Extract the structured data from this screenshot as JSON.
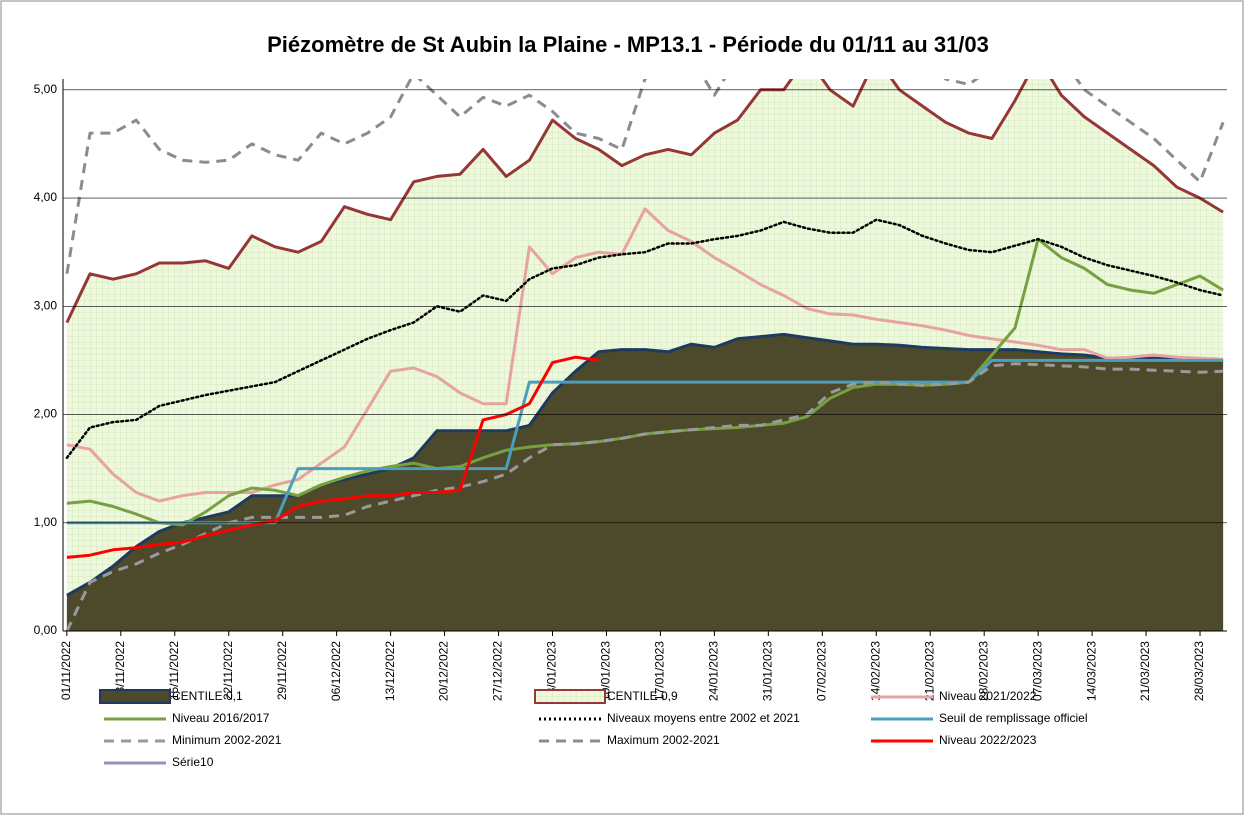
{
  "chart_data": {
    "type": "line",
    "title": "Piézomètre de St Aubin la Plaine - MP13.1 - Période du 01/11 au 31/03",
    "x": [
      "01/11/2022",
      "04/11/2022",
      "07/11/2022",
      "10/11/2022",
      "13/11/2022",
      "16/11/2022",
      "19/11/2022",
      "22/11/2022",
      "25/11/2022",
      "28/11/2022",
      "01/12/2022",
      "04/12/2022",
      "07/12/2022",
      "10/12/2022",
      "13/12/2022",
      "16/12/2022",
      "19/12/2022",
      "22/12/2022",
      "25/12/2022",
      "28/12/2022",
      "31/12/2022",
      "03/01/2023",
      "06/01/2023",
      "09/01/2023",
      "12/01/2023",
      "15/01/2023",
      "18/01/2023",
      "21/01/2023",
      "24/01/2023",
      "27/01/2023",
      "30/01/2023",
      "02/02/2023",
      "05/02/2023",
      "08/02/2023",
      "11/02/2023",
      "14/02/2023",
      "17/02/2023",
      "20/02/2023",
      "23/02/2023",
      "26/02/2023",
      "01/03/2023",
      "04/03/2023",
      "07/03/2023",
      "10/03/2023",
      "13/03/2023",
      "16/03/2023",
      "19/03/2023",
      "22/03/2023",
      "25/03/2023",
      "28/03/2023",
      "31/03/2023"
    ],
    "xlim": [
      "01/11/2022",
      "31/03/2023"
    ],
    "xticks": [
      "01/11/2022",
      "08/11/2022",
      "15/11/2022",
      "22/11/2022",
      "29/11/2022",
      "06/12/2022",
      "13/12/2022",
      "20/12/2022",
      "27/12/2022",
      "03/01/2023",
      "10/01/2023",
      "17/01/2023",
      "24/01/2023",
      "31/01/2023",
      "07/02/2023",
      "14/02/2023",
      "21/02/2023",
      "28/02/2023",
      "07/03/2023",
      "14/03/2023",
      "21/03/2023",
      "28/03/2023"
    ],
    "ylim": [
      0,
      5.1
    ],
    "yticks": [
      {
        "value": 0,
        "label": "0,00"
      },
      {
        "value": 1,
        "label": "1,00"
      },
      {
        "value": 2,
        "label": "2,00"
      },
      {
        "value": 3,
        "label": "3,00"
      },
      {
        "value": 4,
        "label": "4,00"
      },
      {
        "value": 5,
        "label": "5,00"
      }
    ],
    "grid": true,
    "series": [
      {
        "name": "CENTILE 0,1",
        "style": "area",
        "color": "#1f3a5f",
        "fill": "#4d4a2b",
        "values": [
          0.33,
          0.45,
          0.6,
          0.78,
          0.92,
          1.0,
          1.05,
          1.1,
          1.25,
          1.25,
          1.25,
          1.35,
          1.4,
          1.45,
          1.5,
          1.6,
          1.85,
          1.85,
          1.85,
          1.85,
          1.9,
          2.2,
          2.4,
          2.58,
          2.6,
          2.6,
          2.58,
          2.65,
          2.62,
          2.7,
          2.72,
          2.74,
          2.71,
          2.68,
          2.65,
          2.65,
          2.64,
          2.62,
          2.61,
          2.6,
          2.6,
          2.6,
          2.58,
          2.56,
          2.55,
          2.52,
          2.52,
          2.52,
          2.51,
          2.5,
          2.5
        ]
      },
      {
        "name": "CENTILE 0,9",
        "style": "area",
        "color": "#953735",
        "fill": "#eef7e0",
        "values": [
          2.85,
          3.3,
          3.25,
          3.3,
          3.4,
          3.4,
          3.42,
          3.35,
          3.65,
          3.55,
          3.5,
          3.6,
          3.92,
          3.85,
          3.8,
          4.15,
          4.2,
          4.22,
          4.45,
          4.2,
          4.35,
          4.72,
          4.55,
          4.45,
          4.3,
          4.4,
          4.45,
          4.4,
          4.6,
          4.72,
          5.0,
          5.0,
          5.3,
          5.0,
          4.85,
          5.3,
          5.0,
          4.85,
          4.7,
          4.6,
          4.55,
          4.9,
          5.3,
          4.95,
          4.75,
          4.6,
          4.45,
          4.3,
          4.1,
          4.0,
          3.87
        ]
      },
      {
        "name": "Niveau 2021/2022",
        "style": "solid",
        "color": "#e6a3a0",
        "values": [
          1.72,
          1.68,
          1.45,
          1.28,
          1.2,
          1.25,
          1.28,
          1.28,
          1.28,
          1.35,
          1.4,
          1.55,
          1.7,
          2.05,
          2.4,
          2.43,
          2.35,
          2.2,
          2.1,
          2.1,
          3.55,
          3.3,
          3.45,
          3.5,
          3.48,
          3.9,
          3.7,
          3.6,
          3.45,
          3.33,
          3.2,
          3.1,
          2.98,
          2.93,
          2.92,
          2.88,
          2.85,
          2.82,
          2.78,
          2.73,
          2.7,
          2.67,
          2.64,
          2.6,
          2.6,
          2.52,
          2.53,
          2.55,
          2.53,
          2.52,
          2.51
        ]
      },
      {
        "name": "Niveau 2016/2017",
        "style": "solid",
        "color": "#77a040",
        "values": [
          1.18,
          1.2,
          1.15,
          1.08,
          1.0,
          0.98,
          1.1,
          1.25,
          1.32,
          1.3,
          1.25,
          1.35,
          1.42,
          1.48,
          1.52,
          1.55,
          1.5,
          1.52,
          1.6,
          1.67,
          1.7,
          1.72,
          1.73,
          1.75,
          1.78,
          1.82,
          1.84,
          1.86,
          1.87,
          1.88,
          1.9,
          1.92,
          1.98,
          2.15,
          2.25,
          2.28,
          2.28,
          2.27,
          2.28,
          2.3,
          2.55,
          2.8,
          3.62,
          3.45,
          3.35,
          3.2,
          3.15,
          3.12,
          3.2,
          3.28,
          3.15
        ]
      },
      {
        "name": "Niveaux moyens entre 2002 et 2021",
        "style": "dotted",
        "color": "#000000",
        "values": [
          1.6,
          1.88,
          1.93,
          1.95,
          2.08,
          2.13,
          2.18,
          2.22,
          2.26,
          2.3,
          2.4,
          2.5,
          2.6,
          2.7,
          2.78,
          2.85,
          3.0,
          2.95,
          3.1,
          3.05,
          3.25,
          3.35,
          3.38,
          3.45,
          3.48,
          3.5,
          3.58,
          3.58,
          3.62,
          3.65,
          3.7,
          3.78,
          3.72,
          3.68,
          3.68,
          3.8,
          3.75,
          3.65,
          3.58,
          3.52,
          3.5,
          3.56,
          3.62,
          3.55,
          3.45,
          3.38,
          3.33,
          3.28,
          3.22,
          3.15,
          3.1
        ]
      },
      {
        "name": "Seuil de remplissage officiel",
        "style": "solid",
        "color": "#4a9fbf",
        "values": [
          1.0,
          1.0,
          1.0,
          1.0,
          1.0,
          1.0,
          1.0,
          1.0,
          1.0,
          1.0,
          1.5,
          1.5,
          1.5,
          1.5,
          1.5,
          1.5,
          1.5,
          1.5,
          1.5,
          1.5,
          2.3,
          2.3,
          2.3,
          2.3,
          2.3,
          2.3,
          2.3,
          2.3,
          2.3,
          2.3,
          2.3,
          2.3,
          2.3,
          2.3,
          2.3,
          2.3,
          2.3,
          2.3,
          2.3,
          2.3,
          2.5,
          2.5,
          2.5,
          2.5,
          2.5,
          2.5,
          2.5,
          2.5,
          2.5,
          2.5,
          2.5
        ]
      },
      {
        "name": "Minimum 2002-2021",
        "style": "dashed",
        "color": "#9a9a9a",
        "values": [
          0.0,
          0.45,
          0.55,
          0.62,
          0.72,
          0.8,
          0.9,
          1.0,
          1.05,
          1.05,
          1.05,
          1.05,
          1.07,
          1.15,
          1.2,
          1.25,
          1.3,
          1.33,
          1.38,
          1.45,
          1.6,
          1.72,
          1.73,
          1.75,
          1.78,
          1.82,
          1.84,
          1.86,
          1.88,
          1.9,
          1.9,
          1.95,
          2.0,
          2.2,
          2.28,
          2.3,
          2.28,
          2.27,
          2.28,
          2.3,
          2.45,
          2.47,
          2.46,
          2.45,
          2.44,
          2.42,
          2.42,
          2.41,
          2.4,
          2.39,
          2.4
        ]
      },
      {
        "name": "Maximum 2002-2021",
        "style": "dashed",
        "color": "#8c8c8c",
        "values": [
          3.3,
          4.6,
          4.6,
          4.72,
          4.45,
          4.35,
          4.33,
          4.35,
          4.5,
          4.4,
          4.35,
          4.6,
          4.5,
          4.6,
          4.75,
          5.15,
          4.95,
          4.75,
          4.93,
          4.85,
          4.95,
          4.8,
          4.6,
          4.55,
          4.45,
          5.1,
          5.3,
          5.3,
          4.95,
          5.3,
          5.3,
          5.3,
          5.3,
          5.3,
          5.3,
          5.3,
          5.3,
          5.3,
          5.1,
          5.05,
          5.2,
          5.3,
          5.3,
          5.3,
          5.0,
          4.85,
          4.7,
          4.55,
          4.35,
          4.15,
          4.7
        ]
      },
      {
        "name": "Niveau 2022/2023",
        "style": "solid",
        "color": "#ff0000",
        "values": [
          0.68,
          0.7,
          0.75,
          0.77,
          0.8,
          0.82,
          0.88,
          0.93,
          0.98,
          1.02,
          1.15,
          1.2,
          1.22,
          1.25,
          1.25,
          1.28,
          1.28,
          1.3,
          1.95,
          2.0,
          2.1,
          2.48,
          2.53,
          2.5,
          null,
          null,
          null,
          null,
          null,
          null,
          null,
          null,
          null,
          null,
          null,
          null,
          null,
          null,
          null,
          null,
          null,
          null,
          null,
          null,
          null,
          null,
          null,
          null,
          null,
          null,
          null
        ]
      },
      {
        "name": "Série10",
        "style": "solid",
        "color": "#9c8fb8",
        "values": [
          null,
          null,
          null,
          null,
          null,
          null,
          null,
          null,
          null,
          null,
          null,
          null,
          null,
          null,
          null,
          null,
          null,
          null,
          null,
          null,
          null,
          null,
          null,
          null,
          null,
          null,
          null,
          null,
          null,
          null,
          null,
          null,
          null,
          null,
          null,
          null,
          null,
          null,
          null,
          null,
          null,
          null,
          null,
          null,
          null,
          null,
          null,
          null,
          null,
          null,
          null
        ]
      }
    ]
  }
}
